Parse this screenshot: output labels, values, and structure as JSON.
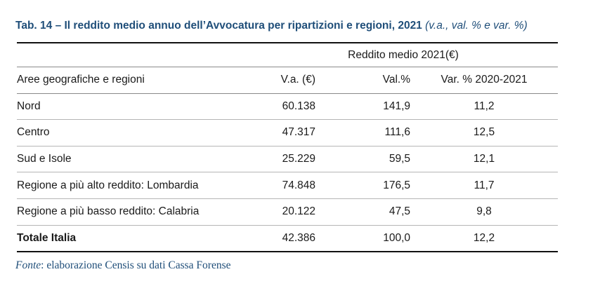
{
  "title": {
    "main": "Tab. 14 – Il reddito medio annuo dell’Avvocatura per ripartizioni e regioni, 2021",
    "sub": "(v.a., val. % e var. %)"
  },
  "table": {
    "group_header": "Reddito medio 2021(€)",
    "columns": [
      "Aree geografiche e regioni",
      "V.a. (€)",
      "Val.%",
      "Var. % 2020-2021"
    ],
    "rows": [
      [
        "Nord",
        "60.138",
        "141,9",
        "11,2"
      ],
      [
        "Centro",
        "47.317",
        "111,6",
        "12,5"
      ],
      [
        "Sud e Isole",
        "25.229",
        "59,5",
        "12,1"
      ],
      [
        "Regione a più alto reddito: Lombardia",
        "74.848",
        "176,5",
        "11,7"
      ],
      [
        "Regione a più basso reddito: Calabria",
        "20.122",
        "47,5",
        "9,8"
      ]
    ],
    "total": [
      "Totale Italia",
      "42.386",
      "100,0",
      "12,2"
    ]
  },
  "source": {
    "label": "Fonte",
    "text": ": elaborazione Censis su dati Cassa Forense"
  }
}
